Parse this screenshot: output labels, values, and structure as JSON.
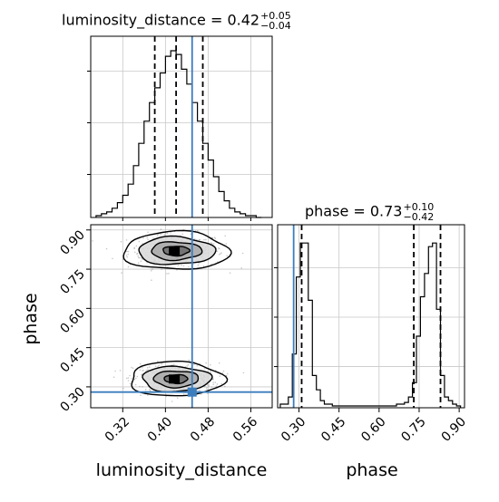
{
  "chart_data": {
    "type": "corner",
    "parameters": [
      "luminosity_distance",
      "phase"
    ],
    "truths": {
      "luminosity_distance": 0.45,
      "phase": 0.28
    },
    "colors": {
      "truth": "#3b7dbd",
      "hist": "#000000",
      "grid": "#c8c8c8",
      "points": "#888888"
    },
    "titles": {
      "luminosity_distance": {
        "label": "luminosity_distance = 0.42",
        "plus": "+0.05",
        "minus": "−0.04"
      },
      "phase": {
        "label": "phase = 0.73",
        "plus": "+0.10",
        "minus": "−0.42"
      }
    },
    "xlabels": {
      "luminosity_distance": "luminosity_distance",
      "phase": "phase"
    },
    "ylabel_2d": "phase",
    "luminosity_distance_ticks": [
      "0.32",
      "0.40",
      "0.48",
      "0.56"
    ],
    "phase_ticks": [
      "0.30",
      "0.45",
      "0.60",
      "0.75",
      "0.90"
    ],
    "luminosity_distance_range": [
      0.26,
      0.6
    ],
    "phase_range": [
      0.22,
      0.92
    ],
    "luminosity_distance_quantiles": [
      0.38,
      0.42,
      0.47
    ],
    "phase_quantiles": [
      0.31,
      0.73,
      0.83
    ],
    "luminosity_distance_hist": {
      "edges": [
        0.27,
        0.28,
        0.29,
        0.3,
        0.31,
        0.32,
        0.33,
        0.34,
        0.35,
        0.36,
        0.37,
        0.38,
        0.39,
        0.4,
        0.41,
        0.42,
        0.43,
        0.44,
        0.45,
        0.46,
        0.47,
        0.48,
        0.49,
        0.5,
        0.51,
        0.52,
        0.53,
        0.54,
        0.55,
        0.56,
        0.57,
        0.58
      ],
      "counts": [
        1,
        2,
        3,
        5,
        8,
        12,
        18,
        28,
        40,
        52,
        62,
        70,
        78,
        87,
        90,
        88,
        80,
        72,
        62,
        52,
        40,
        31,
        22,
        14,
        9,
        5,
        3,
        2,
        1,
        1,
        0
      ]
    },
    "phase_hist": {
      "edges": [
        0.23,
        0.245,
        0.26,
        0.275,
        0.29,
        0.305,
        0.32,
        0.335,
        0.35,
        0.365,
        0.38,
        0.395,
        0.41,
        0.425,
        0.44,
        0.455,
        0.47,
        0.485,
        0.5,
        0.515,
        0.53,
        0.545,
        0.56,
        0.575,
        0.59,
        0.605,
        0.62,
        0.635,
        0.65,
        0.665,
        0.68,
        0.695,
        0.71,
        0.725,
        0.74,
        0.755,
        0.77,
        0.785,
        0.8,
        0.815,
        0.83,
        0.845,
        0.86,
        0.875,
        0.89,
        0.905
      ],
      "counts": [
        2,
        2,
        6,
        30,
        73,
        92,
        92,
        60,
        18,
        10,
        4,
        2,
        2,
        1,
        1,
        1,
        1,
        1,
        1,
        1,
        1,
        1,
        1,
        1,
        1,
        1,
        1,
        1,
        1,
        2,
        2,
        3,
        6,
        14,
        40,
        62,
        75,
        90,
        92,
        55,
        18,
        6,
        4,
        2,
        1
      ]
    },
    "modes": [
      {
        "luminosity_distance": 0.42,
        "phase": 0.82,
        "sd_luminosity_distance": 0.045,
        "sd_phase": 0.033
      },
      {
        "luminosity_distance": 0.42,
        "phase": 0.33,
        "sd_luminosity_distance": 0.04,
        "sd_phase": 0.03
      }
    ]
  }
}
